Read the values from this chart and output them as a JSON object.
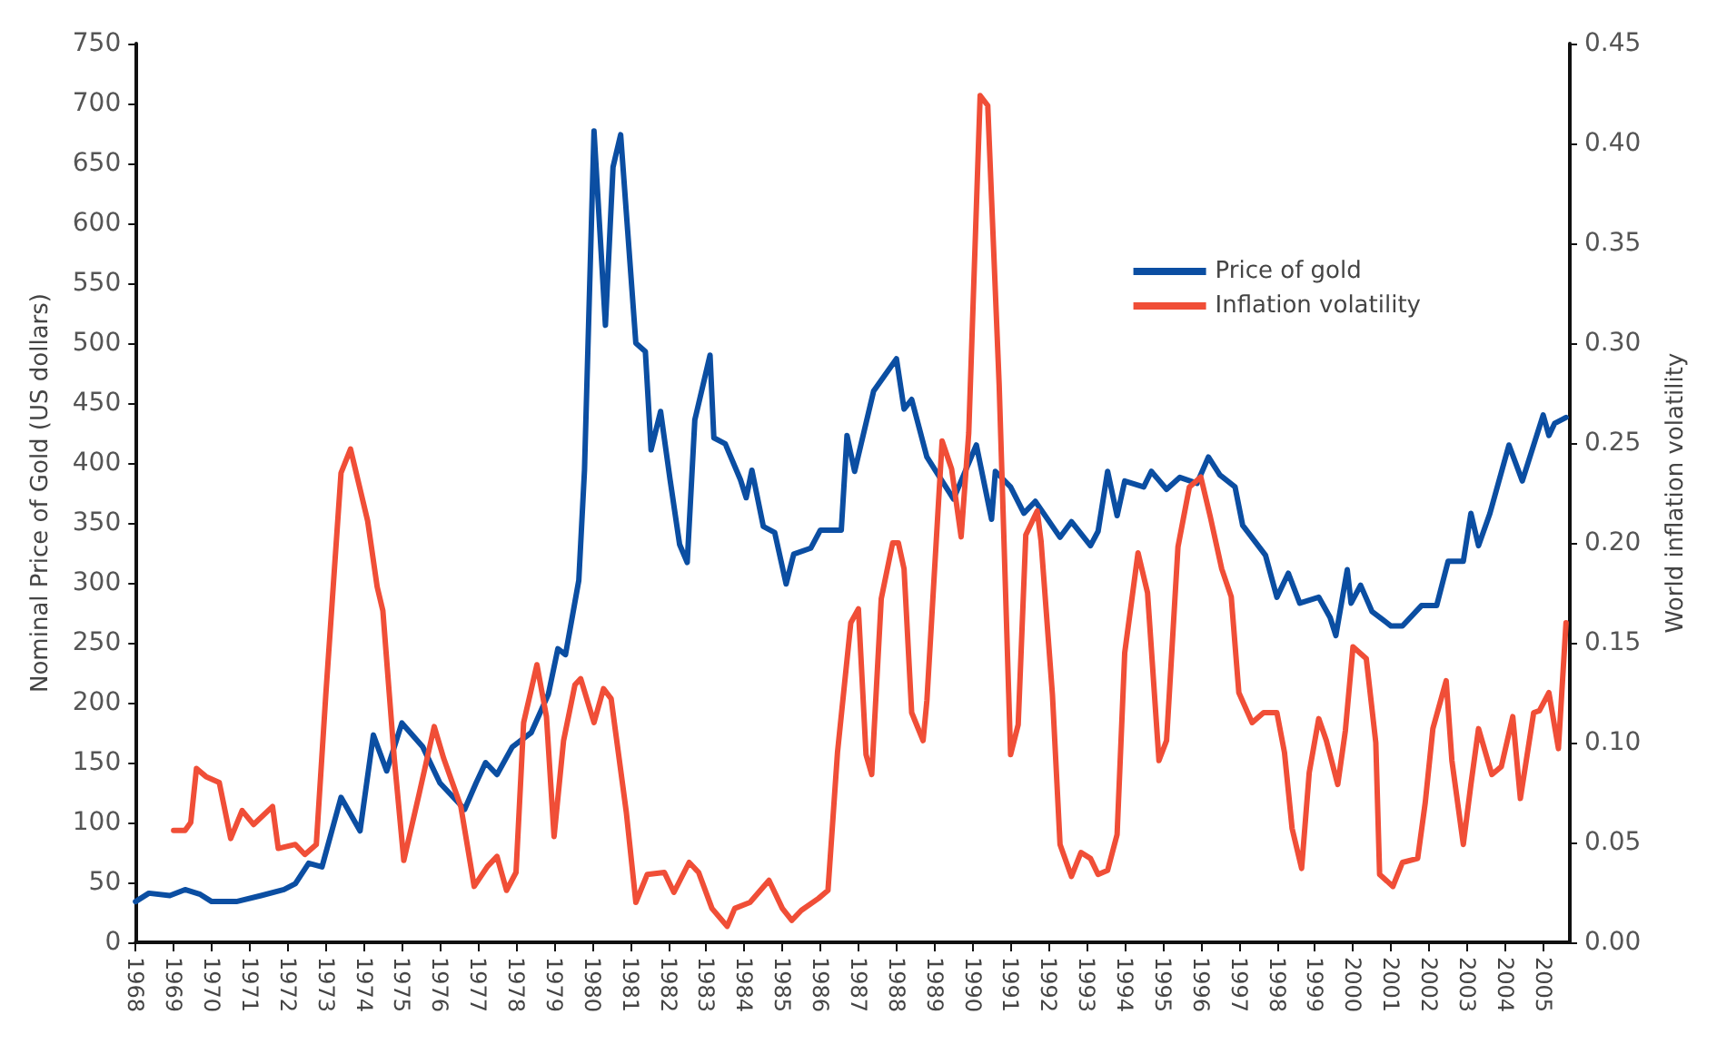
{
  "chart_data": {
    "type": "line",
    "ylabel": "Nominal Price of Gold (US dollars)",
    "y2label": "World inflation volatility",
    "xlim": [
      1968,
      2005.7
    ],
    "xticks": [
      1968,
      1969,
      1970,
      1971,
      1972,
      1973,
      1974,
      1975,
      1976,
      1977,
      1978,
      1979,
      1980,
      1981,
      1982,
      1983,
      1984,
      1985,
      1986,
      1987,
      1988,
      1989,
      1990,
      1991,
      1992,
      1993,
      1994,
      1995,
      1996,
      1997,
      1998,
      1999,
      2000,
      2001,
      2002,
      2003,
      2004,
      2005
    ],
    "ylim": [
      0,
      750
    ],
    "yticks": [
      0,
      50,
      100,
      150,
      200,
      250,
      300,
      350,
      400,
      450,
      500,
      550,
      600,
      650,
      700,
      750
    ],
    "y2lim": [
      0,
      0.45
    ],
    "y2ticks": [
      {
        "value": 0,
        "label": "0.00"
      },
      {
        "value": 0.05,
        "label": "0.05"
      },
      {
        "value": 0.1,
        "label": "0.10"
      },
      {
        "value": 0.15,
        "label": "0.15"
      },
      {
        "value": 0.2,
        "label": "0.20"
      },
      {
        "value": 0.25,
        "label": "0.25"
      },
      {
        "value": 0.3,
        "label": "0.30"
      },
      {
        "value": 0.35,
        "label": "0.35"
      },
      {
        "value": 0.4,
        "label": "0.40"
      },
      {
        "value": 0.45,
        "label": "0.45"
      }
    ],
    "grid": false,
    "legend": "top right",
    "marker": "none",
    "line_style": "solid",
    "series": [
      {
        "name": "Price of gold",
        "color": "#0b4ea2",
        "x": [
          1968.0,
          1968.35,
          1968.9,
          1969.3,
          1969.7,
          1970.0,
          1970.65,
          1971.3,
          1971.9,
          1972.2,
          1972.55,
          1972.9,
          1973.4,
          1973.9,
          1974.25,
          1974.6,
          1975.0,
          1975.55,
          1976.0,
          1976.65,
          1976.95,
          1977.2,
          1977.5,
          1977.9,
          1978.4,
          1978.85,
          1979.1,
          1979.3,
          1979.65,
          1979.8,
          1980.05,
          1980.35,
          1980.55,
          1980.75,
          1981.15,
          1981.4,
          1981.55,
          1981.8,
          1982.05,
          1982.3,
          1982.5,
          1982.7,
          1983.1,
          1983.2,
          1983.5,
          1983.9,
          1984.05,
          1984.2,
          1984.5,
          1984.8,
          1985.1,
          1985.3,
          1985.75,
          1986.0,
          1986.55,
          1986.7,
          1986.9,
          1987.4,
          1988.0,
          1988.2,
          1988.4,
          1988.8,
          1989.2,
          1989.5,
          1990.1,
          1990.5,
          1990.6,
          1991.0,
          1991.35,
          1991.65,
          1992.3,
          1992.6,
          1993.1,
          1993.3,
          1993.55,
          1993.8,
          1994.0,
          1994.5,
          1994.7,
          1995.1,
          1995.45,
          1995.9,
          1996.2,
          1996.5,
          1996.9,
          1997.1,
          1997.7,
          1998.0,
          1998.3,
          1998.6,
          1999.1,
          1999.4,
          1999.55,
          1999.85,
          1999.95,
          2000.2,
          2000.5,
          2001.0,
          2001.3,
          2001.8,
          2002.2,
          2002.5,
          2002.9,
          2003.1,
          2003.3,
          2003.6,
          2004.1,
          2004.45,
          2005.0,
          2005.15,
          2005.3,
          2005.6
        ],
        "values": [
          34,
          41,
          39,
          44,
          40,
          34,
          34,
          39,
          44,
          49,
          66,
          63,
          121,
          93,
          173,
          143,
          183,
          163,
          133,
          111,
          133,
          150,
          140,
          163,
          175,
          207,
          245,
          240,
          302,
          394,
          677,
          515,
          647,
          674,
          500,
          493,
          411,
          443,
          386,
          332,
          317,
          436,
          490,
          421,
          416,
          386,
          371,
          394,
          347,
          342,
          299,
          324,
          329,
          344,
          344,
          423,
          393,
          460,
          487,
          445,
          453,
          405,
          385,
          370,
          415,
          353,
          393,
          380,
          358,
          368,
          338,
          351,
          331,
          343,
          393,
          356,
          385,
          380,
          393,
          378,
          388,
          383,
          405,
          390,
          380,
          348,
          323,
          288,
          308,
          283,
          288,
          271,
          256,
          311,
          283,
          298,
          276,
          264,
          264,
          281,
          281,
          318,
          318,
          358,
          331,
          358,
          415,
          385,
          440,
          423,
          433,
          438
        ]
      },
      {
        "name": "Inflation volatility",
        "color": "#f04e37",
        "axis": "y2",
        "x": [
          1969.0,
          1969.3,
          1969.45,
          1969.6,
          1969.85,
          1970.2,
          1970.5,
          1970.8,
          1971.1,
          1971.6,
          1971.75,
          1972.2,
          1972.45,
          1972.75,
          1973.0,
          1973.4,
          1973.65,
          1974.1,
          1974.35,
          1974.5,
          1974.8,
          1975.05,
          1975.45,
          1975.85,
          1976.1,
          1976.55,
          1976.9,
          1977.25,
          1977.5,
          1977.75,
          1978.0,
          1978.2,
          1978.55,
          1978.8,
          1979.0,
          1979.25,
          1979.55,
          1979.7,
          1980.05,
          1980.3,
          1980.5,
          1980.9,
          1981.15,
          1981.45,
          1981.9,
          1982.15,
          1982.55,
          1982.8,
          1983.15,
          1983.55,
          1983.75,
          1984.15,
          1984.65,
          1985.0,
          1985.25,
          1985.5,
          1985.95,
          1986.2,
          1986.45,
          1986.8,
          1987.0,
          1987.2,
          1987.35,
          1987.6,
          1987.9,
          1988.05,
          1988.2,
          1988.4,
          1988.7,
          1988.8,
          1989.2,
          1989.45,
          1989.7,
          1989.9,
          1990.2,
          1990.4,
          1990.7,
          1991.0,
          1991.2,
          1991.4,
          1991.7,
          1991.8,
          1992.1,
          1992.3,
          1992.6,
          1992.85,
          1993.1,
          1993.3,
          1993.55,
          1993.8,
          1994.0,
          1994.35,
          1994.6,
          1994.9,
          1995.1,
          1995.4,
          1995.7,
          1996.0,
          1996.25,
          1996.55,
          1996.8,
          1997.0,
          1997.35,
          1997.65,
          1998.0,
          1998.2,
          1998.4,
          1998.65,
          1998.85,
          1999.1,
          1999.3,
          1999.6,
          1999.8,
          2000.0,
          2000.35,
          2000.6,
          2000.7,
          2001.05,
          2001.3,
          2001.7,
          2001.9,
          2002.1,
          2002.45,
          2002.6,
          2002.9,
          2003.1,
          2003.3,
          2003.65,
          2003.9,
          2004.2,
          2004.4,
          2004.75,
          2004.9,
          2005.15,
          2005.4,
          2005.6
        ],
        "values": [
          0.056,
          0.056,
          0.06,
          0.087,
          0.083,
          0.08,
          0.052,
          0.066,
          0.059,
          0.068,
          0.047,
          0.049,
          0.044,
          0.049,
          0.124,
          0.235,
          0.247,
          0.211,
          0.178,
          0.166,
          0.092,
          0.041,
          0.074,
          0.108,
          0.092,
          0.068,
          0.028,
          0.038,
          0.043,
          0.026,
          0.035,
          0.11,
          0.139,
          0.113,
          0.053,
          0.101,
          0.129,
          0.132,
          0.11,
          0.127,
          0.122,
          0.065,
          0.02,
          0.034,
          0.035,
          0.025,
          0.04,
          0.035,
          0.017,
          0.008,
          0.017,
          0.02,
          0.031,
          0.017,
          0.011,
          0.016,
          0.022,
          0.026,
          0.095,
          0.16,
          0.167,
          0.094,
          0.084,
          0.172,
          0.2,
          0.2,
          0.187,
          0.115,
          0.101,
          0.121,
          0.251,
          0.237,
          0.203,
          0.255,
          0.424,
          0.419,
          0.279,
          0.094,
          0.109,
          0.204,
          0.216,
          0.201,
          0.124,
          0.049,
          0.033,
          0.045,
          0.042,
          0.034,
          0.036,
          0.054,
          0.145,
          0.195,
          0.175,
          0.091,
          0.101,
          0.198,
          0.228,
          0.233,
          0.213,
          0.187,
          0.173,
          0.125,
          0.11,
          0.115,
          0.115,
          0.095,
          0.057,
          0.037,
          0.085,
          0.112,
          0.101,
          0.079,
          0.106,
          0.148,
          0.142,
          0.1,
          0.034,
          0.028,
          0.04,
          0.042,
          0.07,
          0.107,
          0.131,
          0.091,
          0.049,
          0.079,
          0.107,
          0.084,
          0.088,
          0.113,
          0.072,
          0.115,
          0.116,
          0.125,
          0.097,
          0.16
        ]
      }
    ]
  }
}
